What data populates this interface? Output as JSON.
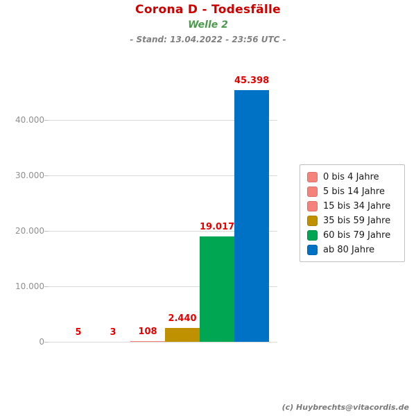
{
  "header": {
    "title": "Corona D - Todesfälle",
    "subtitle": "Welle 2",
    "stand": "- Stand: 13.04.2022 - 23:56 UTC -"
  },
  "footer": {
    "credit": "(c) Huybrechts@vitacordis.de"
  },
  "colors": {
    "title_red": "#cc0000",
    "subtitle_green": "#4c9a4c",
    "stand_gray": "#808080",
    "value_label_red": "#e60000",
    "gridline_gray": "#d9d9d9",
    "axis_text_gray": "#8f8f8f"
  },
  "chart_data": {
    "type": "bar",
    "title": "Corona D - Todesfälle",
    "subtitle": "Welle 2",
    "categories": [
      "0 bis 4 Jahre",
      "5 bis 14 Jahre",
      "15 bis 34 Jahre",
      "35 bis 59 Jahre",
      "60 bis 79 Jahre",
      "ab 80 Jahre"
    ],
    "values": [
      5,
      3,
      108,
      2440,
      19017,
      45398
    ],
    "value_labels": [
      "5",
      "3",
      "108",
      "2.440",
      "19.017",
      "45.398"
    ],
    "bar_colors": [
      "#f5837c",
      "#f5837c",
      "#f5837c",
      "#bf9000",
      "#00a651",
      "#0072c6"
    ],
    "xlabel": "",
    "ylabel": "",
    "ylim": [
      0,
      46000
    ],
    "yticks": [
      0,
      10000,
      20000,
      30000,
      40000
    ],
    "ytick_labels": [
      "0",
      "10.000",
      "20.000",
      "30.000",
      "40.000"
    ],
    "grid": true,
    "legend_position": "right",
    "legend_entries": [
      "0 bis 4 Jahre",
      "5 bis 14 Jahre",
      "15 bis 34 Jahre",
      "35 bis 59 Jahre",
      "60 bis 79 Jahre",
      "ab 80 Jahre"
    ]
  }
}
